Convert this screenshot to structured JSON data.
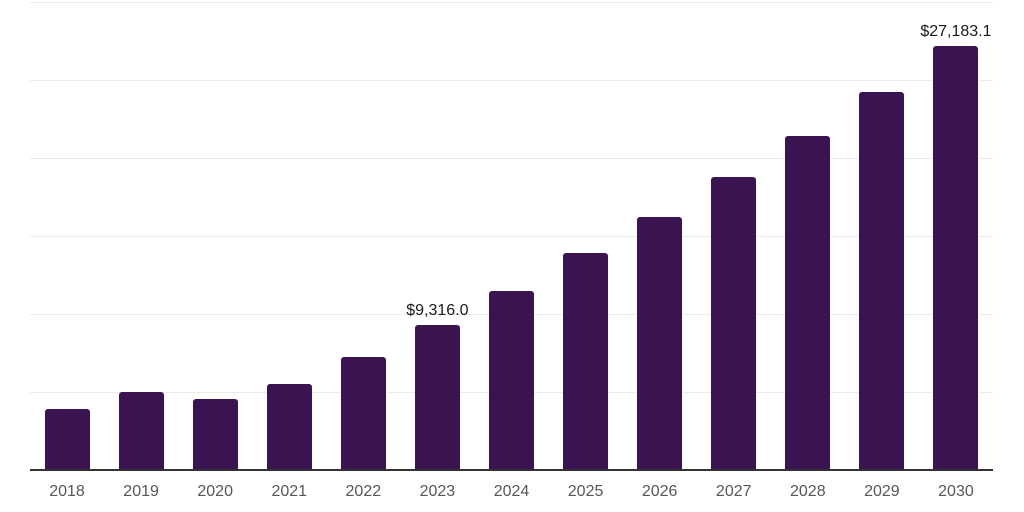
{
  "chart_data": {
    "type": "bar",
    "title": "",
    "xlabel": "",
    "ylabel": "",
    "categories": [
      "2018",
      "2019",
      "2020",
      "2021",
      "2022",
      "2023",
      "2024",
      "2025",
      "2026",
      "2027",
      "2028",
      "2029",
      "2030"
    ],
    "values": [
      3900,
      5000,
      4580,
      5530,
      7260,
      9316.0,
      11480,
      13890,
      16240,
      18760,
      21410,
      24230,
      27183.1
    ],
    "value_labels": [
      "",
      "",
      "",
      "",
      "",
      "$9,316.0",
      "",
      "",
      "",
      "",
      "",
      "",
      "$27,183.1"
    ],
    "ylim": [
      0,
      30000
    ],
    "grid_step": 5000,
    "grid": true,
    "legend": false,
    "colors": {
      "bar": "#3A1450",
      "gridline": "#EBEBEB",
      "axis": "#333333",
      "tick_label": "#56575A",
      "value_label": "#1A1A1A",
      "background": "#FFFFFF"
    }
  }
}
